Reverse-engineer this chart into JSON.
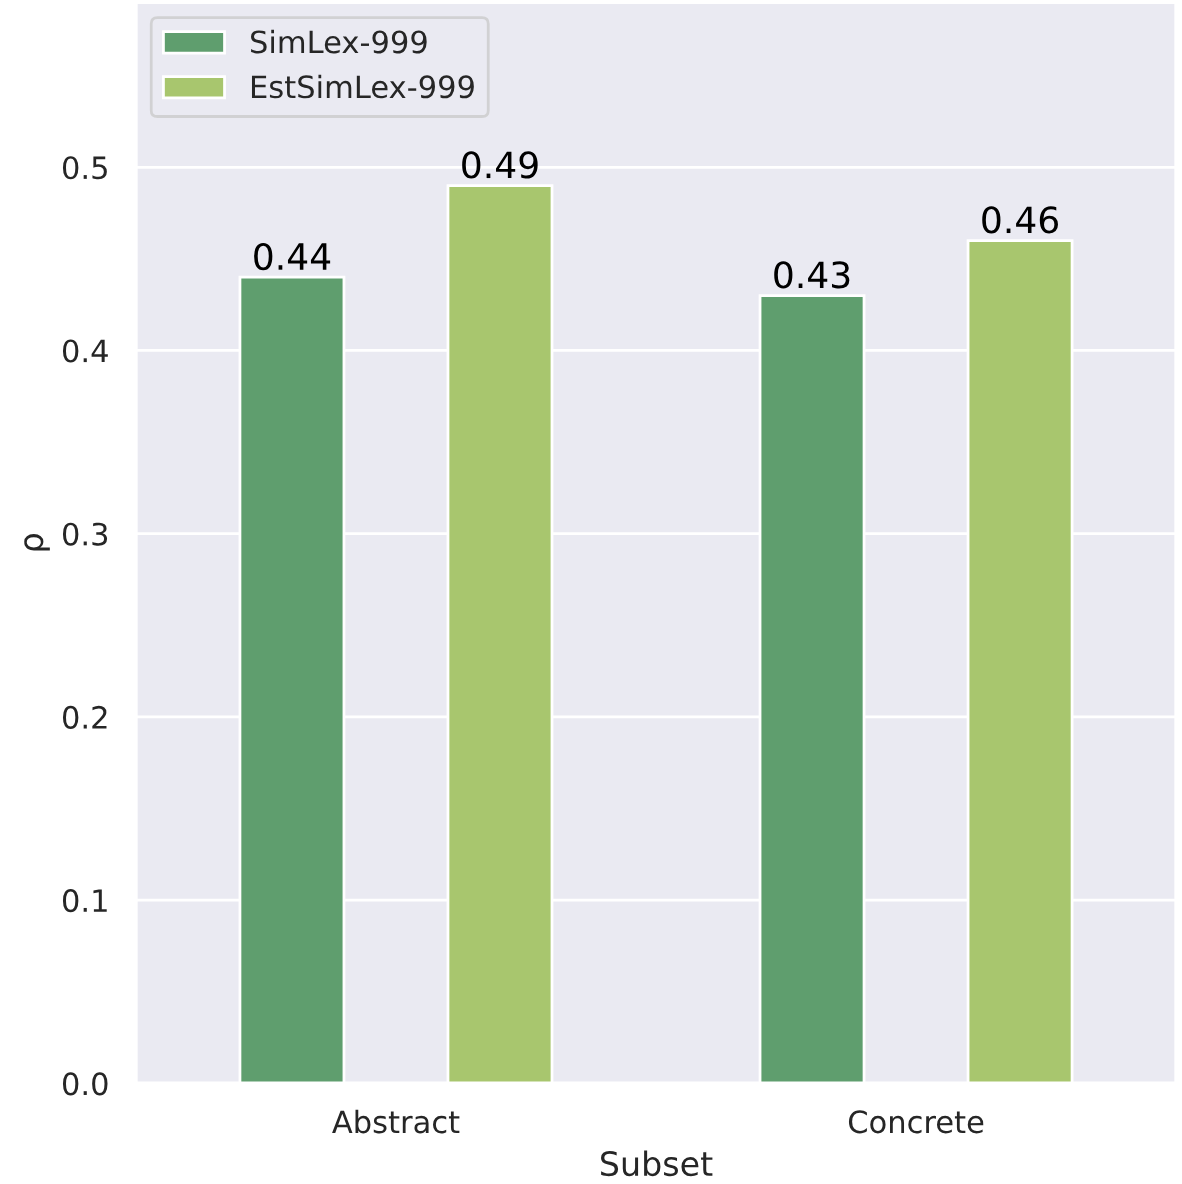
{
  "chart_data": {
    "type": "bar",
    "xlabel": "Subset",
    "ylabel": "ρ",
    "categories": [
      "Abstract",
      "Concrete"
    ],
    "series": [
      {
        "name": "SimLex-999",
        "color": "#5f9e6e",
        "values": [
          0.44,
          0.43
        ]
      },
      {
        "name": "EstSimLex-999",
        "color": "#a8c66e",
        "values": [
          0.49,
          0.46
        ]
      }
    ],
    "ylim": [
      0,
      0.59
    ],
    "yticks": [
      {
        "value": 0,
        "label": "0.0"
      },
      0.1,
      0.2,
      0.3,
      0.4,
      0.5
    ],
    "grid": "y",
    "legend": "top left",
    "data_labels": true
  }
}
